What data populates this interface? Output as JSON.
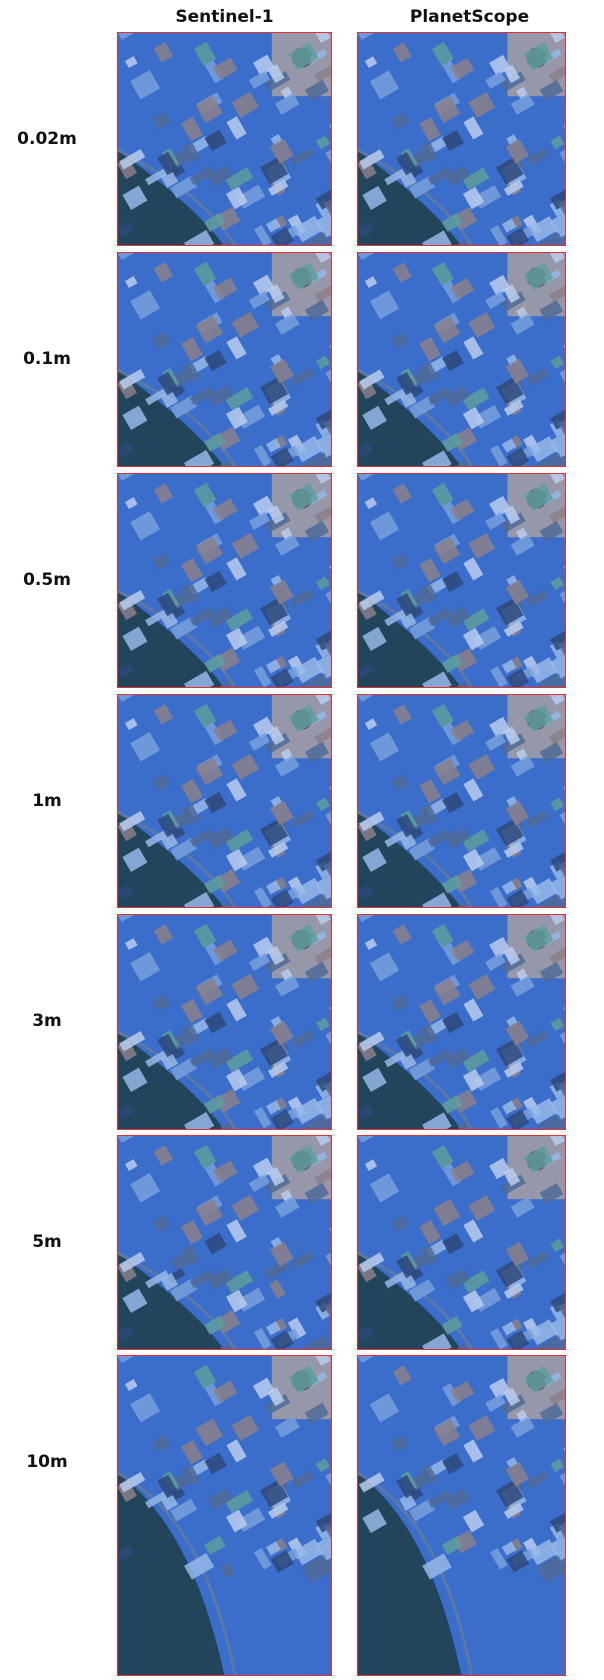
{
  "columns": [
    "Sentinel-1",
    "PlanetScope"
  ],
  "rows": [
    "0.02m",
    "0.1m",
    "0.5m",
    "1m",
    "3m",
    "5m",
    "10m"
  ]
}
